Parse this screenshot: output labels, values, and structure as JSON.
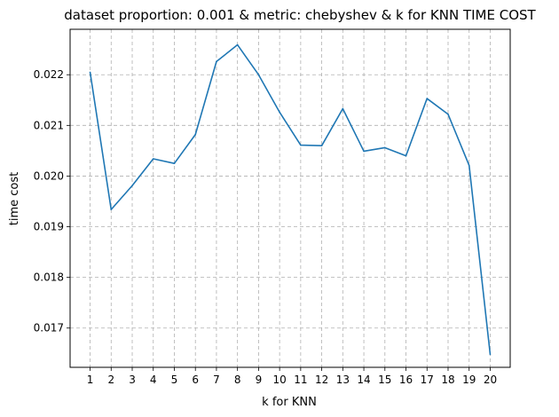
{
  "chart_data": {
    "type": "line",
    "title": "dataset proportion: 0.001 & metric: chebyshev & k for KNN TIME COST",
    "xlabel": "k for KNN",
    "ylabel": "time cost",
    "x": [
      1,
      2,
      3,
      4,
      5,
      6,
      7,
      8,
      9,
      10,
      11,
      12,
      13,
      14,
      15,
      16,
      17,
      18,
      19,
      20
    ],
    "series": [
      {
        "values": [
          0.02205,
          0.01934,
          0.01981,
          0.02034,
          0.02025,
          0.02082,
          0.02226,
          0.02259,
          0.022,
          0.02126,
          0.02061,
          0.0206,
          0.02133,
          0.02049,
          0.02056,
          0.0204,
          0.02153,
          0.02122,
          0.02021,
          0.01648
        ],
        "color": "#1f77b4"
      }
    ],
    "xticks": [
      "1",
      "2",
      "3",
      "4",
      "5",
      "6",
      "7",
      "8",
      "9",
      "10",
      "11",
      "12",
      "13",
      "14",
      "15",
      "16",
      "17",
      "18",
      "19",
      "20"
    ],
    "yticks": [
      "0.017",
      "0.018",
      "0.019",
      "0.020",
      "0.021",
      "0.022"
    ],
    "ytick_values": [
      0.017,
      0.018,
      0.019,
      0.02,
      0.021,
      0.022
    ],
    "xlim": [
      0.05,
      20.95
    ],
    "ylim": [
      0.016225,
      0.022897
    ],
    "grid": true,
    "grid_style": "dashed",
    "grid_color": "#b0b0b0",
    "legend": "none"
  }
}
